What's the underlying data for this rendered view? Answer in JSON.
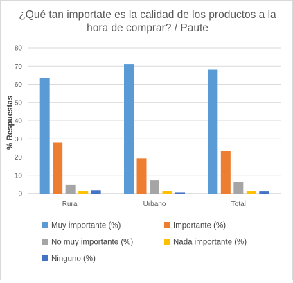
{
  "chart_data": {
    "type": "bar",
    "title_lines": [
      "¿Qué tan importate es la calidad de los productos a la",
      "hora de comprar? / Paute"
    ],
    "xlabel": "",
    "ylabel": "% Respuestas",
    "ylim": [
      0,
      80
    ],
    "yticks": [
      "0",
      "10",
      "20",
      "30",
      "40",
      "50",
      "60",
      "70",
      "80"
    ],
    "grid": true,
    "legend_position": "bottom",
    "categories": [
      "Rural",
      "Urbano",
      "Total"
    ],
    "series": [
      {
        "name": "Muy importante (%)",
        "color": "#5b9bd5",
        "values": [
          63.6,
          71.2,
          68.0
        ]
      },
      {
        "name": "Importante (%)",
        "color": "#ed7d31",
        "values": [
          28.0,
          19.3,
          23.3
        ]
      },
      {
        "name": "No muy importante (%)",
        "color": "#a5a5a5",
        "values": [
          5.0,
          7.2,
          6.2
        ]
      },
      {
        "name": "Nada importante (%)",
        "color": "#ffc000",
        "values": [
          1.4,
          1.5,
          1.3
        ]
      },
      {
        "name": "Ninguno (%)",
        "color": "#4472c4",
        "values": [
          1.8,
          0.6,
          1.1
        ]
      }
    ]
  }
}
